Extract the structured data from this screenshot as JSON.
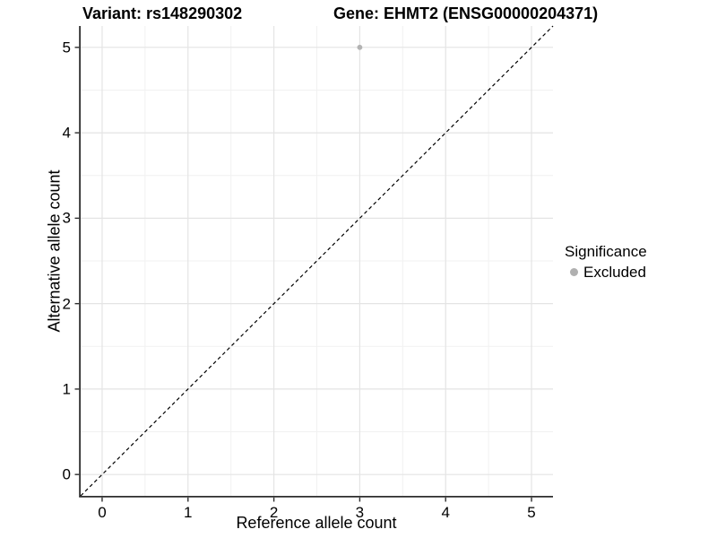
{
  "titles": {
    "variant": "Variant: rs148290302",
    "gene": "Gene: EHMT2 (ENSG00000204371)"
  },
  "legend": {
    "title": "Significance",
    "position": "right",
    "entries": [
      {
        "label": "Excluded",
        "color": "#b0b0b0"
      }
    ]
  },
  "colors": {
    "background": "#ffffff",
    "grid_major": "#e4e4e4",
    "grid_minor": "#f1f1f1",
    "axis_line": "#2e2e2e",
    "tick_mark": "#2e2e2e",
    "reference_line": "#000000",
    "point": "#b3b3b3",
    "text": "#000000"
  },
  "chart_data": {
    "type": "scatter",
    "title": "Variant: rs148290302   Gene: EHMT2 (ENSG00000204371)",
    "xlabel": "Reference allele count",
    "ylabel": "Alternative allele count",
    "xlim": [
      -0.25,
      5.25
    ],
    "ylim": [
      -0.25,
      5.25
    ],
    "xticks": [
      0,
      1,
      2,
      3,
      4,
      5
    ],
    "yticks": [
      0,
      1,
      2,
      3,
      4,
      5
    ],
    "minor_xticks": [
      0.5,
      1.5,
      2.5,
      3.5,
      4.5
    ],
    "minor_yticks": [
      0.5,
      1.5,
      2.5,
      3.5,
      4.5
    ],
    "grid": "major+minor",
    "legend_position": "right",
    "series": [
      {
        "name": "Excluded",
        "color": "#b3b3b3",
        "marker": "circle",
        "points": [
          {
            "x": 3,
            "y": 5
          }
        ]
      }
    ],
    "reference_line": {
      "type": "abline",
      "slope": 1,
      "intercept": 0,
      "style": "dashed",
      "color": "#000000"
    }
  }
}
